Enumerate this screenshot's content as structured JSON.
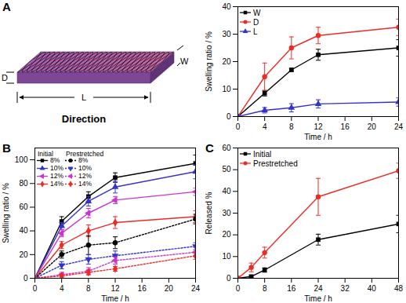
{
  "diagram": {
    "panel": "A",
    "labels": {
      "depth": "D",
      "width": "W",
      "length": "L"
    },
    "caption": "Direction"
  },
  "chart_data": [
    {
      "type": "line",
      "x_label": "Time / h",
      "y_label": "Swelling ratio / %",
      "x": [
        0,
        4,
        8,
        12,
        24
      ],
      "xlim": [
        0,
        24
      ],
      "xticks": [
        0,
        4,
        8,
        12,
        16,
        20,
        24
      ],
      "ylim": [
        0,
        40
      ],
      "yticks": [
        0,
        10,
        20,
        30,
        40
      ],
      "legend": "upper-left",
      "series": [
        {
          "name": "W",
          "color": "#000000",
          "marker": "square",
          "line_style": "solid",
          "values": [
            0,
            8.5,
            17,
            22.5,
            25
          ],
          "errors": [
            0,
            1,
            0.5,
            2,
            3
          ]
        },
        {
          "name": "D",
          "color": "#ee2a24",
          "marker": "circle",
          "line_style": "solid",
          "values": [
            0,
            14.5,
            25,
            29.5,
            32.5
          ],
          "errors": [
            0,
            5,
            4,
            3,
            3
          ]
        },
        {
          "name": "L",
          "color": "#3333cc",
          "marker": "triangle",
          "line_style": "solid",
          "values": [
            0,
            2.3,
            3.2,
            4.6,
            5.3
          ],
          "errors": [
            0,
            1,
            1.5,
            1.5,
            1.5
          ]
        }
      ]
    },
    {
      "type": "line",
      "title": "B",
      "x_label": "Time / h",
      "y_label": "Swelling ratio / %",
      "x": [
        0,
        4,
        8,
        12,
        24
      ],
      "xlim": [
        0,
        24
      ],
      "xticks": [
        0,
        4,
        8,
        12,
        16,
        20,
        24
      ],
      "ylim": [
        0,
        110
      ],
      "yticks": [
        0,
        20,
        40,
        60,
        80,
        100
      ],
      "legend": "upper-left",
      "series": [
        {
          "name": "8%",
          "group": "Initial",
          "color": "#000000",
          "marker": "square",
          "line_style": "solid",
          "values": [
            0,
            48,
            69,
            85,
            97
          ],
          "errors": [
            0,
            4,
            4,
            4,
            7
          ]
        },
        {
          "name": "10%",
          "group": "Initial",
          "color": "#3333cc",
          "marker": "triangle",
          "line_style": "solid",
          "values": [
            0,
            44,
            65,
            77,
            90
          ],
          "errors": [
            0,
            3,
            4,
            5,
            6
          ]
        },
        {
          "name": "12%",
          "group": "Initial",
          "color": "#cc33cc",
          "marker": "triangle-left",
          "line_style": "solid",
          "values": [
            0,
            38,
            55,
            66,
            73
          ],
          "errors": [
            0,
            3,
            4,
            3,
            3
          ]
        },
        {
          "name": "14%",
          "group": "Initial",
          "color": "#ee2a24",
          "marker": "diamond",
          "line_style": "solid",
          "values": [
            0,
            28,
            40,
            47,
            52
          ],
          "errors": [
            0,
            3,
            5,
            5,
            5
          ]
        },
        {
          "name": "8%",
          "group": "Prestretched",
          "color": "#000000",
          "marker": "circle",
          "line_style": "dotted",
          "values": [
            0,
            20,
            28,
            30,
            50
          ],
          "errors": [
            0,
            3,
            8,
            5,
            4
          ]
        },
        {
          "name": "10%",
          "group": "Prestretched",
          "color": "#3333cc",
          "marker": "triangle-down",
          "line_style": "dotted",
          "values": [
            0,
            11,
            16,
            19,
            27
          ],
          "errors": [
            0,
            3,
            4,
            4,
            3
          ]
        },
        {
          "name": "12%",
          "group": "Prestretched",
          "color": "#cc33cc",
          "marker": "triangle-left",
          "line_style": "dotted",
          "values": [
            0,
            3,
            6,
            15,
            22
          ],
          "errors": [
            0,
            2,
            3,
            3,
            4
          ]
        },
        {
          "name": "14%",
          "group": "Prestretched",
          "color": "#ee2a24",
          "marker": "diamond",
          "line_style": "dotted",
          "values": [
            0,
            2,
            5,
            8,
            19
          ],
          "errors": [
            0,
            2,
            2,
            2,
            3
          ]
        }
      ]
    },
    {
      "type": "line",
      "title": "C",
      "x_label": "Time / h",
      "y_label": "Released %",
      "x": [
        0,
        4,
        8,
        24,
        48
      ],
      "xlim": [
        0,
        48
      ],
      "xticks": [
        0,
        8,
        16,
        24,
        32,
        40,
        48
      ],
      "ylim": [
        0,
        60
      ],
      "yticks": [
        0,
        10,
        20,
        30,
        40,
        50,
        60
      ],
      "legend": "upper-left",
      "series": [
        {
          "name": "Initial",
          "color": "#000000",
          "marker": "square",
          "line_style": "solid",
          "values": [
            0,
            0.8,
            3.8,
            17.8,
            25
          ],
          "errors": [
            0,
            0.5,
            1,
            2.5,
            4
          ]
        },
        {
          "name": "Prestretched",
          "color": "#ee2a24",
          "marker": "circle",
          "line_style": "solid",
          "values": [
            0,
            5,
            11.8,
            37.5,
            49.5
          ],
          "errors": [
            0,
            2,
            2.5,
            8.5,
            3.5
          ]
        }
      ]
    }
  ]
}
